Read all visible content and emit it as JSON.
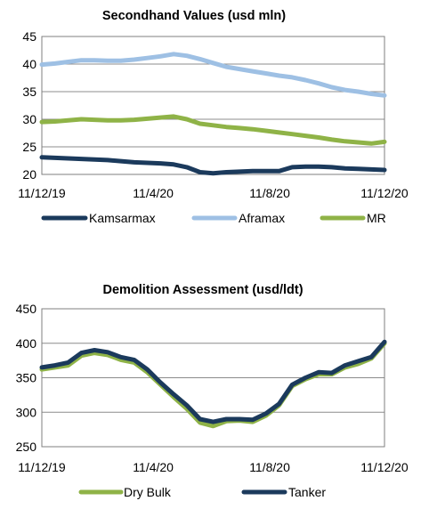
{
  "chart_data": [
    {
      "type": "line",
      "title": "Secondhand Values (usd mln)",
      "xlabel": "",
      "ylabel": "",
      "x_tick_labels": [
        "11/12/19",
        "11/4/20",
        "11/8/20",
        "11/12/20"
      ],
      "y_tick_labels": [
        "20",
        "25",
        "30",
        "35",
        "40",
        "45"
      ],
      "ylim": [
        20,
        45
      ],
      "grid": "horizontal",
      "legend_position": "bottom",
      "x": [
        0,
        2,
        4,
        6,
        8,
        10,
        12,
        14,
        16,
        18,
        20,
        22,
        24,
        26,
        28,
        30,
        32,
        34,
        36,
        38,
        40,
        42,
        44,
        46,
        48,
        50,
        52
      ],
      "series": [
        {
          "name": "Kamsarmax",
          "color": "#1b3a5c",
          "values": [
            23.1,
            23.0,
            22.9,
            22.8,
            22.7,
            22.6,
            22.4,
            22.2,
            22.1,
            22.0,
            21.8,
            21.3,
            20.4,
            20.2,
            20.4,
            20.5,
            20.6,
            20.6,
            20.6,
            21.3,
            21.4,
            21.4,
            21.3,
            21.1,
            21.0,
            20.9,
            20.8
          ]
        },
        {
          "name": "Aframax",
          "color": "#9ec0e4",
          "values": [
            39.9,
            40.1,
            40.4,
            40.7,
            40.7,
            40.6,
            40.6,
            40.8,
            41.1,
            41.4,
            41.8,
            41.5,
            40.9,
            40.2,
            39.5,
            39.1,
            38.7,
            38.3,
            37.9,
            37.6,
            37.1,
            36.5,
            35.8,
            35.3,
            35.0,
            34.6,
            34.3
          ]
        },
        {
          "name": "MR",
          "color": "#8fb347",
          "values": [
            29.5,
            29.6,
            29.8,
            30.0,
            29.9,
            29.8,
            29.8,
            29.9,
            30.1,
            30.3,
            30.5,
            30.0,
            29.2,
            28.9,
            28.6,
            28.4,
            28.2,
            27.9,
            27.6,
            27.3,
            27.0,
            26.7,
            26.3,
            26.0,
            25.8,
            25.6,
            25.9
          ]
        }
      ]
    },
    {
      "type": "line",
      "title": "Demolition Assessment (usd/ldt)",
      "xlabel": "",
      "ylabel": "",
      "x_tick_labels": [
        "11/12/19",
        "11/4/20",
        "11/8/20",
        "11/12/20"
      ],
      "y_tick_labels": [
        "250",
        "300",
        "350",
        "400",
        "450"
      ],
      "ylim": [
        250,
        450
      ],
      "grid": "horizontal",
      "legend_position": "bottom",
      "x": [
        0,
        2,
        4,
        6,
        8,
        10,
        12,
        14,
        16,
        18,
        20,
        22,
        24,
        26,
        28,
        30,
        32,
        34,
        36,
        38,
        40,
        42,
        44,
        46,
        48,
        50,
        52
      ],
      "series": [
        {
          "name": "Dry Bulk",
          "color": "#8fb347",
          "values": [
            362,
            365,
            368,
            382,
            386,
            383,
            376,
            372,
            358,
            340,
            322,
            305,
            285,
            280,
            287,
            288,
            286,
            295,
            310,
            338,
            348,
            355,
            355,
            365,
            370,
            378,
            400
          ]
        },
        {
          "name": "Tanker",
          "color": "#1b3a5c",
          "values": [
            365,
            368,
            372,
            386,
            390,
            387,
            380,
            376,
            362,
            343,
            326,
            310,
            290,
            286,
            290,
            290,
            289,
            298,
            312,
            340,
            350,
            358,
            357,
            368,
            374,
            380,
            402
          ]
        }
      ]
    }
  ]
}
